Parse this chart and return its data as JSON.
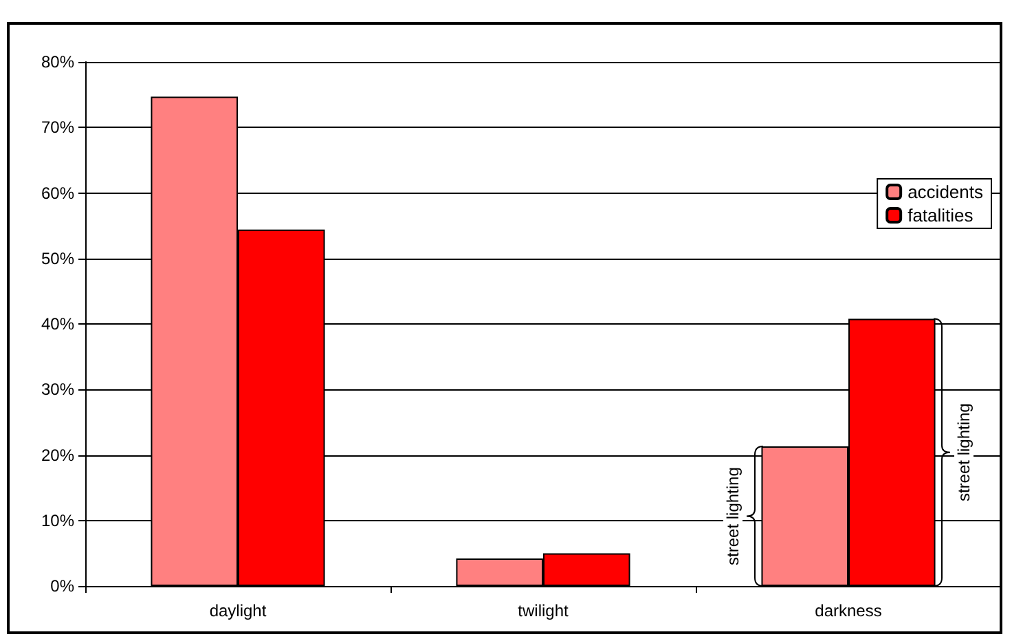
{
  "chart_data": {
    "type": "bar",
    "categories": [
      "daylight",
      "twilight",
      "darkness"
    ],
    "series": [
      {
        "name": "accidents",
        "color": "#ff8080",
        "values": [
          74.7,
          4.2,
          21.3
        ]
      },
      {
        "name": "fatalities",
        "color": "#ff0000",
        "values": [
          54.4,
          5.0,
          40.8
        ]
      }
    ],
    "ylim": [
      0,
      80
    ],
    "yticks": [
      {
        "value": 0,
        "label": "0%"
      },
      {
        "value": 10,
        "label": "10%"
      },
      {
        "value": 20,
        "label": "20%"
      },
      {
        "value": 30,
        "label": "30%"
      },
      {
        "value": 40,
        "label": "40%"
      },
      {
        "value": 50,
        "label": "50%"
      },
      {
        "value": 60,
        "label": "60%"
      },
      {
        "value": 70,
        "label": "70%"
      },
      {
        "value": 80,
        "label": "80%"
      }
    ],
    "annotations": [
      "street lighting",
      "street lighting"
    ],
    "grid": "y",
    "legend": "top right"
  }
}
